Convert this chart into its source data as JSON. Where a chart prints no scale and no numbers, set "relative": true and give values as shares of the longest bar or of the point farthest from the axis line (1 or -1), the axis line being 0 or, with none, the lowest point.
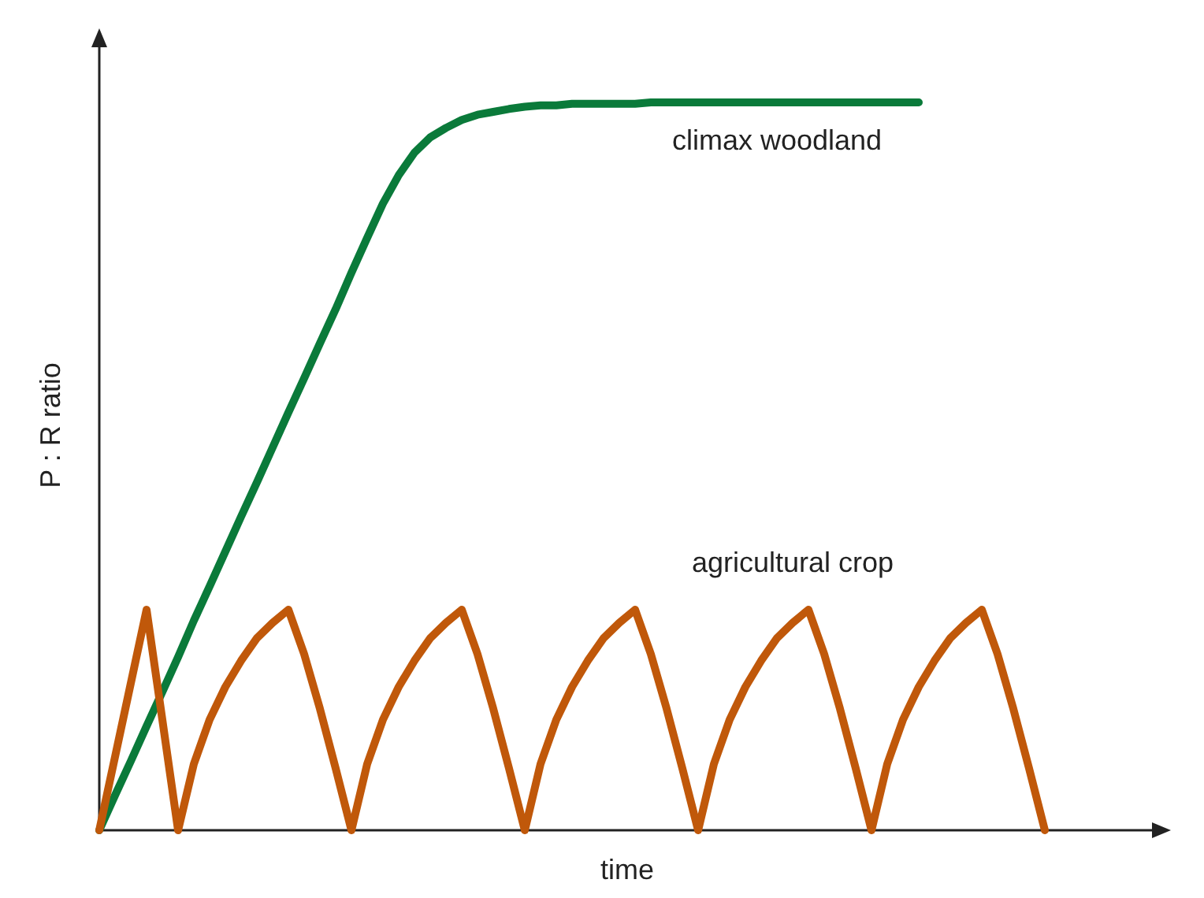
{
  "chart_data": {
    "type": "line",
    "relative": true,
    "xlabel": "time",
    "ylabel": "P : R ratio",
    "legend": false,
    "grid": false,
    "marker": "none",
    "line_style": "solid",
    "categories": [
      null,
      null,
      null,
      null,
      null,
      null,
      null,
      null,
      null,
      null,
      null,
      null,
      null,
      null,
      null,
      null,
      null,
      null,
      null,
      null,
      null,
      null,
      null,
      null,
      null,
      null,
      null,
      null,
      null,
      null,
      null,
      null,
      null,
      null,
      null,
      null,
      null,
      null,
      null,
      null,
      null,
      null,
      null,
      null,
      null,
      null,
      null,
      null,
      null,
      null,
      null,
      null,
      null,
      null,
      null,
      null,
      null,
      null,
      null,
      null,
      null
    ],
    "series": [
      {
        "name": "climax woodland",
        "color": "#0a7a3a",
        "values": [
          0,
          0.048,
          0.095,
          0.143,
          0.19,
          0.238,
          0.288,
          0.335,
          0.383,
          0.431,
          0.478,
          0.526,
          0.574,
          0.621,
          0.669,
          0.716,
          0.766,
          0.814,
          0.861,
          0.9,
          0.931,
          0.952,
          0.965,
          0.976,
          0.983,
          0.987,
          0.991,
          0.994,
          0.996,
          0.996,
          0.998,
          0.998,
          0.998,
          0.998,
          0.998,
          1,
          1,
          1,
          1,
          1,
          1,
          1,
          1,
          1,
          1,
          1,
          1,
          1,
          1,
          1,
          1,
          1,
          1,
          null,
          null,
          null,
          null,
          null,
          null,
          null,
          null
        ]
      },
      {
        "name": "agricultural crop",
        "color": "#c0580a",
        "values": [
          0,
          0.101,
          0.202,
          0.303,
          0.152,
          0,
          0.091,
          0.152,
          0.197,
          0.233,
          0.264,
          0.285,
          0.303,
          0.242,
          0.167,
          0.085,
          0,
          0.091,
          0.152,
          0.197,
          0.233,
          0.264,
          0.285,
          0.303,
          0.242,
          0.167,
          0.085,
          0,
          0.091,
          0.152,
          0.197,
          0.233,
          0.264,
          0.285,
          0.303,
          0.242,
          0.167,
          0.085,
          0,
          0.091,
          0.152,
          0.197,
          0.233,
          0.264,
          0.285,
          0.303,
          0.242,
          0.167,
          0.085,
          0,
          0.091,
          0.152,
          0.197,
          0.233,
          0.264,
          0.285,
          0.303,
          0.242,
          0.167,
          0.085,
          0
        ]
      }
    ]
  }
}
